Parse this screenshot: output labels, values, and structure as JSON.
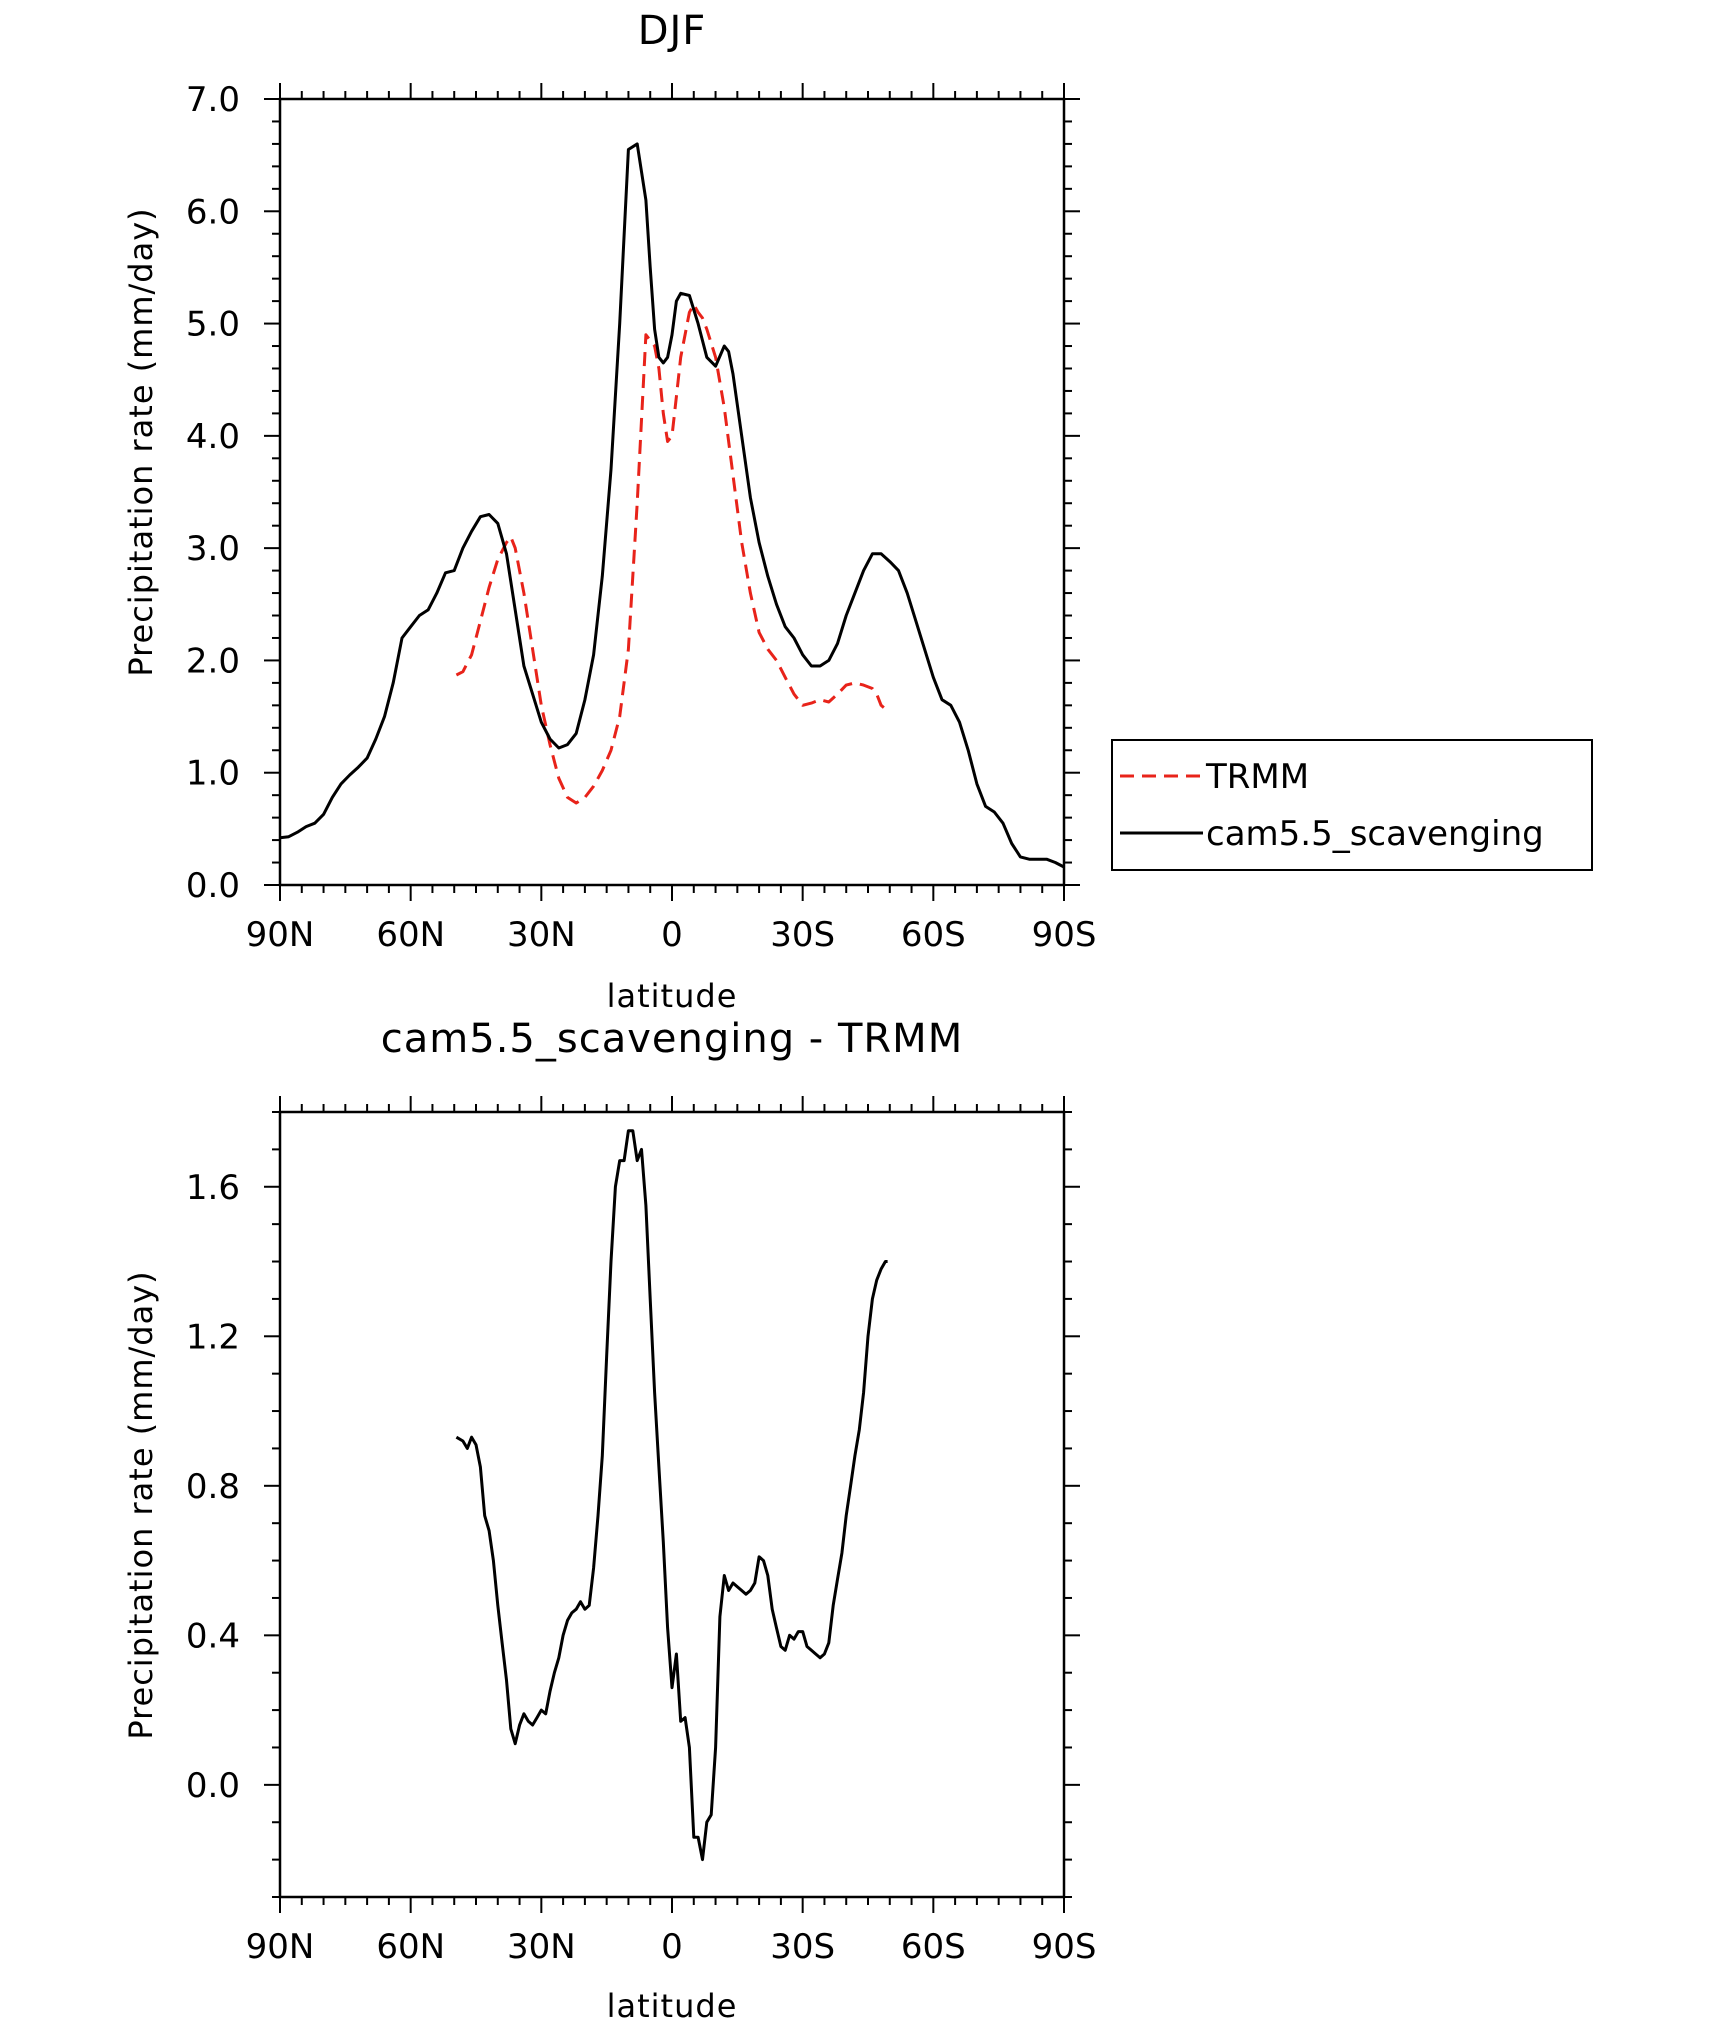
{
  "chart_data": [
    {
      "type": "line",
      "title": "DJF",
      "xlabel": "latitude",
      "ylabel": "Precipitation rate (mm/day)",
      "xlim": [
        90,
        -90
      ],
      "ylim": [
        0,
        7
      ],
      "x_ticks": [
        90,
        60,
        30,
        0,
        -30,
        -60,
        -90
      ],
      "x_tick_labels": [
        "90N",
        "60N",
        "30N",
        "0",
        "30S",
        "60S",
        "90S"
      ],
      "y_ticks": [
        0,
        1,
        2,
        3,
        4,
        5,
        6,
        7
      ],
      "y_tick_labels": [
        "0.0",
        "1.0",
        "2.0",
        "3.0",
        "4.0",
        "5.0",
        "6.0",
        "7.0"
      ],
      "legend": {
        "placement": "right",
        "entries": [
          "TRMM",
          "cam5.5_scavenging"
        ]
      },
      "series": [
        {
          "name": "TRMM",
          "color": "#e8231a",
          "dash": "dashed",
          "x": [
            49.5,
            48,
            46,
            44,
            42,
            40,
            38,
            37,
            36,
            34,
            32,
            30,
            28,
            26,
            24,
            22,
            20,
            18,
            16,
            14,
            12,
            10,
            8,
            6,
            4,
            3,
            2,
            1,
            0,
            -1,
            -2,
            -4,
            -5,
            -6,
            -7,
            -8,
            -10,
            -12,
            -14,
            -16,
            -18,
            -20,
            -22,
            -24,
            -26,
            -28,
            -30,
            -32,
            -34,
            -36,
            -38,
            -40,
            -42,
            -44,
            -46,
            -47,
            -48,
            -49.5
          ],
          "y": [
            1.87,
            1.9,
            2.05,
            2.35,
            2.65,
            2.9,
            3.05,
            3.1,
            3.0,
            2.6,
            2.1,
            1.6,
            1.25,
            0.95,
            0.78,
            0.73,
            0.78,
            0.88,
            1.02,
            1.2,
            1.5,
            2.1,
            3.4,
            4.9,
            4.8,
            4.6,
            4.2,
            3.95,
            4.0,
            4.35,
            4.7,
            5.1,
            5.17,
            5.1,
            5.05,
            4.95,
            4.7,
            4.25,
            3.65,
            3.05,
            2.6,
            2.25,
            2.1,
            2.0,
            1.85,
            1.7,
            1.6,
            1.62,
            1.65,
            1.63,
            1.7,
            1.78,
            1.8,
            1.78,
            1.75,
            1.7,
            1.6,
            1.55
          ]
        },
        {
          "name": "cam5.5_scavenging",
          "color": "#000000",
          "dash": "solid",
          "x": [
            90,
            88,
            86,
            84,
            82,
            80,
            78,
            76,
            74,
            72,
            70,
            68,
            66,
            64,
            62,
            60,
            58,
            56,
            54,
            52,
            50,
            48,
            46,
            44,
            42,
            40,
            38,
            36,
            34,
            32,
            30,
            28,
            26,
            24,
            22,
            20,
            18,
            16,
            14,
            12,
            10,
            8,
            6,
            5,
            4,
            3,
            2,
            1,
            0,
            -1,
            -2,
            -4,
            -6,
            -8,
            -10,
            -12,
            -13,
            -14,
            -16,
            -18,
            -20,
            -22,
            -24,
            -26,
            -28,
            -30,
            -32,
            -34,
            -36,
            -38,
            -40,
            -42,
            -44,
            -46,
            -48,
            -50,
            -52,
            -54,
            -56,
            -58,
            -60,
            -62,
            -64,
            -66,
            -68,
            -70,
            -72,
            -74,
            -76,
            -78,
            -80,
            -82,
            -84,
            -86,
            -88,
            -90
          ],
          "y": [
            0.42,
            0.43,
            0.47,
            0.52,
            0.55,
            0.63,
            0.78,
            0.9,
            0.98,
            1.05,
            1.13,
            1.3,
            1.5,
            1.8,
            2.2,
            2.3,
            2.4,
            2.45,
            2.6,
            2.78,
            2.8,
            3.0,
            3.15,
            3.28,
            3.3,
            3.22,
            2.95,
            2.45,
            1.95,
            1.7,
            1.45,
            1.3,
            1.22,
            1.25,
            1.35,
            1.65,
            2.05,
            2.75,
            3.7,
            5.0,
            6.55,
            6.6,
            6.1,
            5.5,
            4.95,
            4.7,
            4.65,
            4.7,
            4.9,
            5.2,
            5.27,
            5.25,
            5.0,
            4.7,
            4.62,
            4.8,
            4.75,
            4.55,
            4.0,
            3.45,
            3.05,
            2.75,
            2.5,
            2.3,
            2.2,
            2.05,
            1.95,
            1.95,
            2.0,
            2.15,
            2.4,
            2.6,
            2.8,
            2.95,
            2.95,
            2.88,
            2.8,
            2.6,
            2.35,
            2.1,
            1.85,
            1.65,
            1.6,
            1.45,
            1.2,
            0.9,
            0.7,
            0.65,
            0.55,
            0.37,
            0.25,
            0.23,
            0.23,
            0.23,
            0.2,
            0.16
          ]
        }
      ]
    },
    {
      "type": "line",
      "title": "cam5.5_scavenging - TRMM",
      "xlabel": "latitude",
      "ylabel": "Precipitation rate (mm/day)",
      "xlim": [
        90,
        -90
      ],
      "ylim": [
        -0.3,
        1.8
      ],
      "x_ticks": [
        90,
        60,
        30,
        0,
        -30,
        -60,
        -90
      ],
      "x_tick_labels": [
        "90N",
        "60N",
        "30N",
        "0",
        "30S",
        "60S",
        "90S"
      ],
      "y_ticks": [
        0,
        0.4,
        0.8,
        1.2,
        1.6
      ],
      "y_tick_labels": [
        "0.0",
        "0.4",
        "0.8",
        "1.2",
        "1.6"
      ],
      "series": [
        {
          "color": "#000000",
          "dash": "solid",
          "x": [
            49.5,
            48,
            47,
            46,
            45,
            44,
            43,
            42,
            41,
            40,
            39,
            38,
            37,
            36,
            35,
            34,
            33,
            32,
            31,
            30,
            29,
            28,
            27,
            26,
            25,
            24,
            23,
            22,
            21,
            20,
            19,
            18,
            17,
            16,
            15,
            14,
            13,
            12,
            11,
            10,
            9,
            8,
            7,
            6,
            5,
            4,
            3,
            2,
            1,
            0,
            -1,
            -2,
            -3,
            -4,
            -5,
            -6,
            -7,
            -8,
            -9,
            -10,
            -11,
            -12,
            -13,
            -14,
            -15,
            -16,
            -17,
            -18,
            -19,
            -20,
            -21,
            -22,
            -23,
            -24,
            -25,
            -26,
            -27,
            -28,
            -29,
            -30,
            -31,
            -32,
            -33,
            -34,
            -35,
            -36,
            -37,
            -38,
            -39,
            -40,
            -41,
            -42,
            -43,
            -44,
            -45,
            -46,
            -47,
            -48,
            -49,
            -49.5
          ],
          "y": [
            0.93,
            0.92,
            0.9,
            0.93,
            0.91,
            0.85,
            0.72,
            0.68,
            0.6,
            0.48,
            0.38,
            0.28,
            0.15,
            0.11,
            0.16,
            0.19,
            0.17,
            0.16,
            0.18,
            0.2,
            0.19,
            0.25,
            0.3,
            0.34,
            0.4,
            0.44,
            0.46,
            0.47,
            0.49,
            0.47,
            0.48,
            0.58,
            0.72,
            0.88,
            1.15,
            1.4,
            1.6,
            1.67,
            1.67,
            1.75,
            1.75,
            1.67,
            1.7,
            1.55,
            1.3,
            1.05,
            0.85,
            0.65,
            0.42,
            0.26,
            0.35,
            0.17,
            0.18,
            0.1,
            -0.14,
            -0.14,
            -0.2,
            -0.1,
            -0.08,
            0.1,
            0.45,
            0.56,
            0.52,
            0.54,
            0.53,
            0.52,
            0.51,
            0.52,
            0.54,
            0.61,
            0.6,
            0.56,
            0.47,
            0.42,
            0.37,
            0.36,
            0.4,
            0.39,
            0.41,
            0.41,
            0.37,
            0.36,
            0.35,
            0.34,
            0.35,
            0.38,
            0.48,
            0.55,
            0.62,
            0.72,
            0.8,
            0.88,
            0.95,
            1.05,
            1.2,
            1.3,
            1.35,
            1.38,
            1.4,
            1.4
          ]
        }
      ]
    }
  ]
}
